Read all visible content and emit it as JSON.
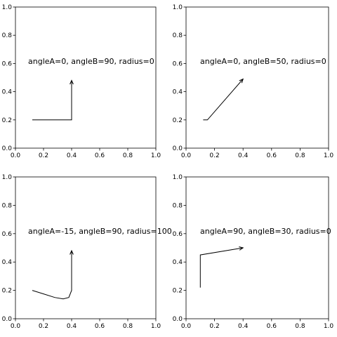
{
  "chart_data": [
    {
      "type": "annotation",
      "xlim": [
        0,
        1
      ],
      "ylim": [
        0,
        1
      ],
      "xticks": [
        0.0,
        0.2,
        0.4,
        0.6,
        0.8,
        1.0
      ],
      "yticks": [
        0.0,
        0.2,
        0.4,
        0.6,
        0.8,
        1.0
      ],
      "xtick_labels": [
        "0.0",
        "0.2",
        "0.4",
        "0.6",
        "0.8",
        "1.0"
      ],
      "ytick_labels": [
        "0.0",
        "0.2",
        "0.4",
        "0.6",
        "0.8",
        "1.0"
      ],
      "annotation": "angleA=0, angleB=90, radius=0",
      "connectionstyle": "angle",
      "start": [
        0.12,
        0.2
      ],
      "end": [
        0.4,
        0.48
      ],
      "path": [
        [
          0.12,
          0.2
        ],
        [
          0.4,
          0.2
        ],
        [
          0.4,
          0.48
        ]
      ]
    },
    {
      "type": "annotation",
      "xlim": [
        0,
        1
      ],
      "ylim": [
        0,
        1
      ],
      "xticks": [
        0.0,
        0.2,
        0.4,
        0.6,
        0.8,
        1.0
      ],
      "yticks": [
        0.0,
        0.2,
        0.4,
        0.6,
        0.8,
        1.0
      ],
      "xtick_labels": [
        "0.0",
        "0.2",
        "0.4",
        "0.6",
        "0.8",
        "1.0"
      ],
      "ytick_labels": [
        "0.0",
        "0.2",
        "0.4",
        "0.6",
        "0.8",
        "1.0"
      ],
      "annotation": "angleA=0, angleB=50, radius=0",
      "connectionstyle": "angle",
      "start": [
        0.12,
        0.2
      ],
      "end": [
        0.4,
        0.49
      ],
      "path": [
        [
          0.12,
          0.2
        ],
        [
          0.15,
          0.2
        ],
        [
          0.4,
          0.49
        ]
      ]
    },
    {
      "type": "annotation",
      "xlim": [
        0,
        1
      ],
      "ylim": [
        0,
        1
      ],
      "xticks": [
        0.0,
        0.2,
        0.4,
        0.6,
        0.8,
        1.0
      ],
      "yticks": [
        0.0,
        0.2,
        0.4,
        0.6,
        0.8,
        1.0
      ],
      "xtick_labels": [
        "0.0",
        "0.2",
        "0.4",
        "0.6",
        "0.8",
        "1.0"
      ],
      "ytick_labels": [
        "0.0",
        "0.2",
        "0.4",
        "0.6",
        "0.8",
        "1.0"
      ],
      "annotation": "angleA=-15, angleB=90, radius=100",
      "connectionstyle": "angle",
      "start": [
        0.12,
        0.2
      ],
      "end": [
        0.4,
        0.48
      ],
      "path": [
        [
          0.12,
          0.2
        ],
        [
          0.2,
          0.175
        ],
        [
          0.28,
          0.15
        ],
        [
          0.34,
          0.14
        ],
        [
          0.38,
          0.15
        ],
        [
          0.4,
          0.2
        ],
        [
          0.4,
          0.48
        ]
      ]
    },
    {
      "type": "annotation",
      "xlim": [
        0,
        1
      ],
      "ylim": [
        0,
        1
      ],
      "xticks": [
        0.0,
        0.2,
        0.4,
        0.6,
        0.8,
        1.0
      ],
      "yticks": [
        0.0,
        0.2,
        0.4,
        0.6,
        0.8,
        1.0
      ],
      "xtick_labels": [
        "0.0",
        "0.2",
        "0.4",
        "0.6",
        "0.8",
        "1.0"
      ],
      "ytick_labels": [
        "0.0",
        "0.2",
        "0.4",
        "0.6",
        "0.8",
        "1.0"
      ],
      "annotation": "angleA=90, angleB=30, radius=0",
      "connectionstyle": "angle",
      "start": [
        0.1,
        0.22
      ],
      "end": [
        0.4,
        0.5
      ],
      "path": [
        [
          0.1,
          0.22
        ],
        [
          0.1,
          0.45
        ],
        [
          0.4,
          0.5
        ]
      ]
    }
  ]
}
